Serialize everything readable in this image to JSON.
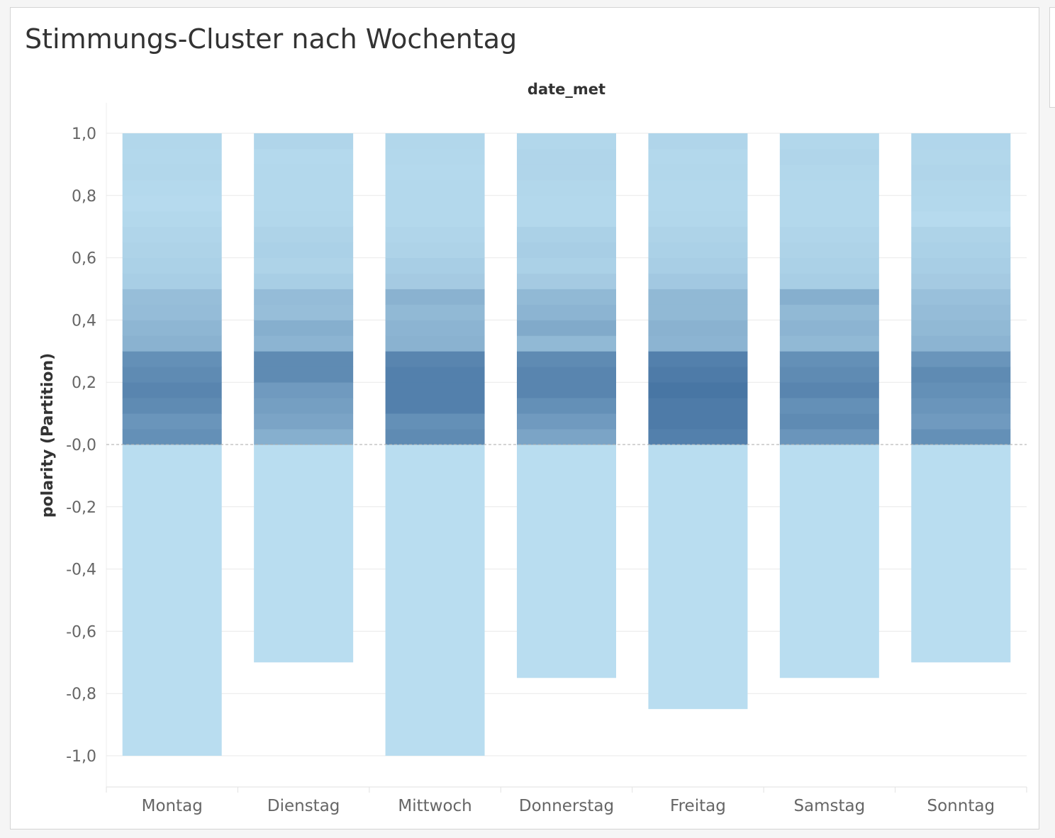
{
  "title": "Stimmungs-Cluster nach Wochentag",
  "colors": {
    "light": "#b9ddf0",
    "dark": "#4876a4",
    "zero_line": "#aaaaaa",
    "grid": "#e9e9e9",
    "tick_text": "#666666",
    "label_text": "#333333"
  },
  "chart_data": {
    "type": "bar",
    "stacked": true,
    "title": "Stimmungs-Cluster nach Wochentag",
    "column_header": "date_met",
    "xlabel": "",
    "ylabel": "polarity (Partition)",
    "ylim": [
      -1.0,
      1.0
    ],
    "yticks": [
      "1,0",
      "0,8",
      "0,6",
      "0,4",
      "0,2",
      "-0,0",
      "-0,2",
      "-0,4",
      "-0,6",
      "-0,8",
      "-1,0"
    ],
    "ytick_values": [
      1.0,
      0.8,
      0.6,
      0.4,
      0.2,
      0.0,
      -0.2,
      -0.4,
      -0.6,
      -0.8,
      -1.0
    ],
    "grid": true,
    "categories": [
      "Montag",
      "Dienstag",
      "Mittwoch",
      "Donnerstag",
      "Freitag",
      "Samstag",
      "Sonntag"
    ],
    "segment_size": 0.05,
    "positive_intensity": [
      [
        0.75,
        0.45,
        0.8,
        0.55,
        0.9,
        0.7,
        0.75
      ],
      [
        0.7,
        0.55,
        0.75,
        0.65,
        0.95,
        0.8,
        0.65
      ],
      [
        0.8,
        0.6,
        0.9,
        0.75,
        0.95,
        0.75,
        0.7
      ],
      [
        0.85,
        0.65,
        0.9,
        0.85,
        1.0,
        0.85,
        0.75
      ],
      [
        0.8,
        0.8,
        0.9,
        0.85,
        0.95,
        0.8,
        0.8
      ],
      [
        0.75,
        0.8,
        0.85,
        0.8,
        0.9,
        0.75,
        0.7
      ],
      [
        0.42,
        0.4,
        0.42,
        0.35,
        0.4,
        0.35,
        0.4
      ],
      [
        0.38,
        0.45,
        0.4,
        0.5,
        0.42,
        0.4,
        0.35
      ],
      [
        0.32,
        0.3,
        0.35,
        0.4,
        0.35,
        0.35,
        0.32
      ],
      [
        0.3,
        0.32,
        0.42,
        0.35,
        0.35,
        0.45,
        0.28
      ],
      [
        0.15,
        0.15,
        0.18,
        0.18,
        0.2,
        0.15,
        0.18
      ],
      [
        0.12,
        0.1,
        0.15,
        0.12,
        0.15,
        0.12,
        0.15
      ],
      [
        0.1,
        0.12,
        0.1,
        0.15,
        0.12,
        0.1,
        0.12
      ],
      [
        0.08,
        0.1,
        0.08,
        0.12,
        0.1,
        0.08,
        0.1
      ],
      [
        0.05,
        0.06,
        0.05,
        0.05,
        0.06,
        0.05,
        0.03
      ],
      [
        0.03,
        0.05,
        0.05,
        0.05,
        0.05,
        0.05,
        0.05
      ],
      [
        0.04,
        0.05,
        0.05,
        0.06,
        0.05,
        0.05,
        0.06
      ],
      [
        0.06,
        0.05,
        0.04,
        0.08,
        0.06,
        0.06,
        0.08
      ],
      [
        0.05,
        0.04,
        0.05,
        0.08,
        0.05,
        0.08,
        0.06
      ],
      [
        0.06,
        0.08,
        0.06,
        0.06,
        0.08,
        0.06,
        0.07
      ]
    ],
    "negative_values": [
      -1.0,
      -0.7,
      -1.0,
      -0.75,
      -0.85,
      -0.75,
      -0.7
    ]
  }
}
